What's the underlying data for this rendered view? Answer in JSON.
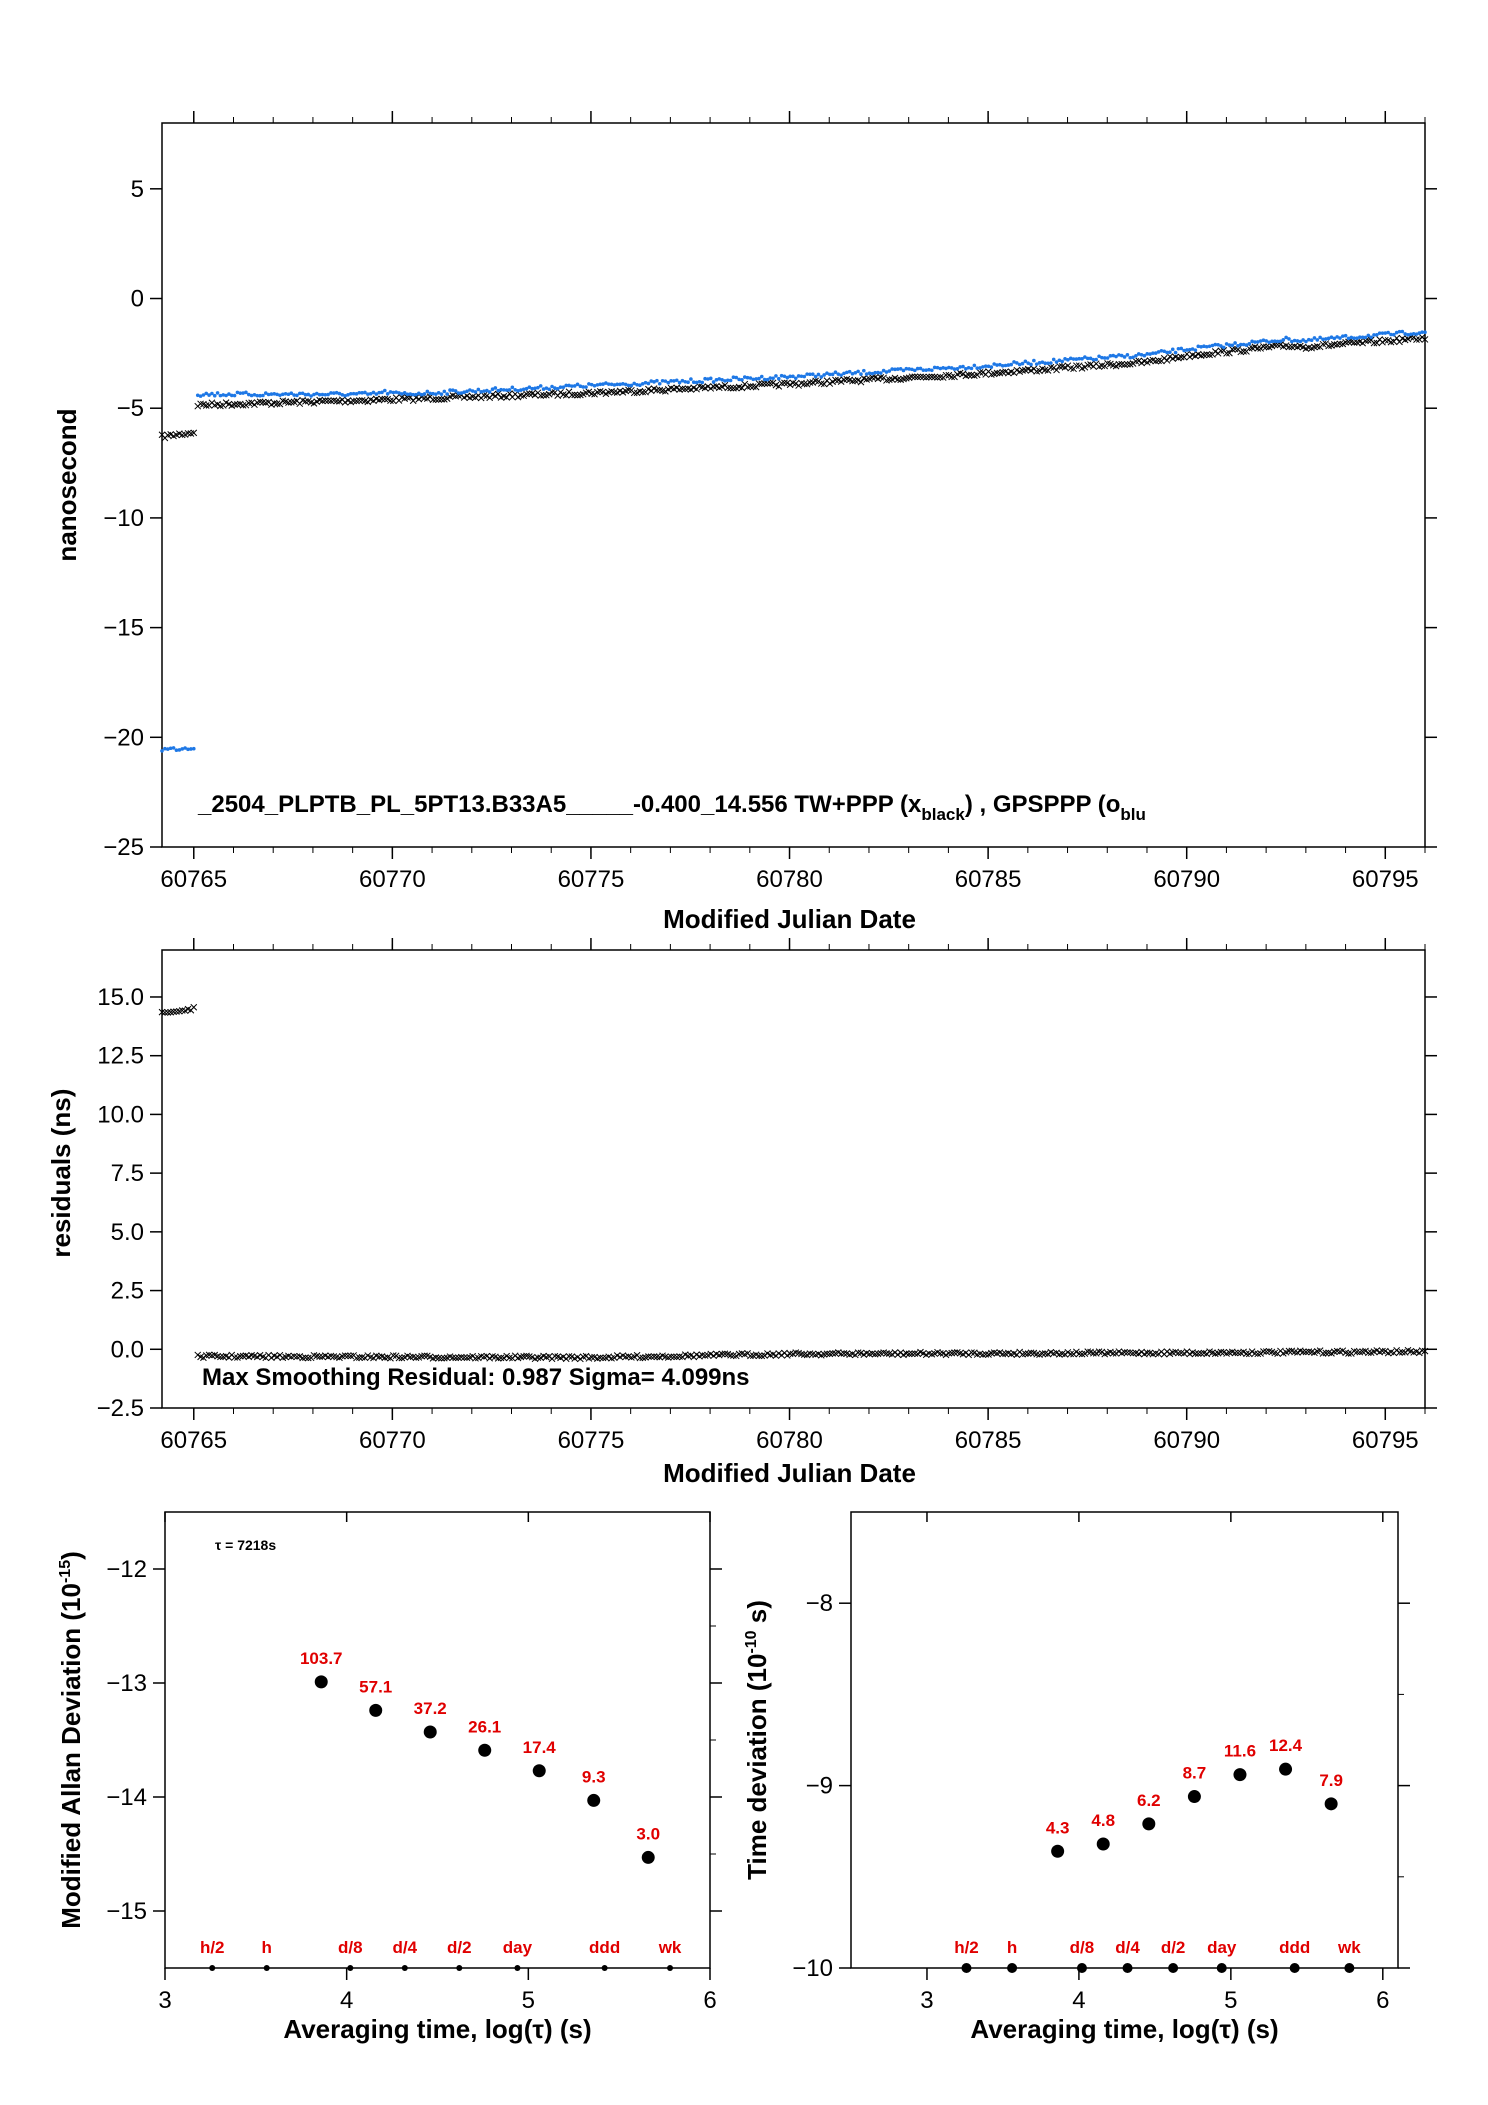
{
  "colors": {
    "black_series": "#000000",
    "blue_series": "#1e78e6",
    "label_red": "#e00000"
  },
  "chart_data": [
    {
      "id": "time_offset",
      "type": "scatter",
      "xlabel": "Modified Julian Date",
      "ylabel": "nanosecond",
      "xlim": [
        60764.2,
        60796
      ],
      "ylim": [
        -25,
        8
      ],
      "xticks": [
        60765,
        60770,
        60775,
        60780,
        60785,
        60790,
        60795
      ],
      "yticks": [
        5,
        0,
        -5,
        -10,
        -15,
        -20,
        -25
      ],
      "annotation": "_2504_PLPTB_PL_5PT13.B33A5_____-0.400_14.556     TW+PPP (x",
      "annotation_sub1": "black",
      "annotation_mid": ") ,  GPSPPP (o",
      "annotation_sub2": "blu",
      "series": [
        {
          "marker": "x",
          "color": "#000000",
          "segments": [
            {
              "x": [
                60764.2,
                60765.0
              ],
              "y": [
                -6.3,
                -6.1
              ]
            },
            {
              "x": [
                60765.1,
                60770,
                60775,
                60780,
                60785,
                60789,
                60790,
                60792.5,
                60793,
                60796
              ],
              "y": [
                -4.85,
                -4.6,
                -4.3,
                -3.9,
                -3.4,
                -2.9,
                -2.6,
                -2.15,
                -2.2,
                -1.8
              ]
            }
          ]
        },
        {
          "marker": "o",
          "color": "#1e78e6",
          "segments": [
            {
              "x": [
                60764.2,
                60765.0
              ],
              "y": [
                -20.7,
                -20.6
              ]
            },
            {
              "x": [
                60765.1,
                60769.5,
                60769.8,
                60770.2,
                60775,
                60780,
                60785,
                60789,
                60790,
                60792.5,
                60793,
                60796
              ],
              "y": [
                -4.5,
                -4.5,
                -4.4,
                -4.5,
                -4.1,
                -3.7,
                -3.2,
                -2.7,
                -2.45,
                -2.0,
                -2.05,
                -1.65
              ]
            }
          ]
        }
      ]
    },
    {
      "id": "residuals",
      "type": "scatter",
      "xlabel": "Modified Julian Date",
      "ylabel": "residuals (ns)",
      "xlim": [
        60764.2,
        60796
      ],
      "ylim": [
        -2.5,
        17
      ],
      "xticks": [
        60765,
        60770,
        60775,
        60780,
        60785,
        60790,
        60795
      ],
      "yticks": [
        15.0,
        12.5,
        10.0,
        7.5,
        5.0,
        2.5,
        0.0,
        -2.5
      ],
      "ytick_labels": [
        "15.0",
        "12.5",
        "10.0",
        "7.5",
        "5.0",
        "2.5",
        "0.0",
        "−2.5"
      ],
      "annotation": "Max Smoothing Residual: 0.987  Sigma= 4.099ns",
      "series": [
        {
          "marker": "x",
          "color": "#000000",
          "segments": [
            {
              "x": [
                60764.2,
                60765.0
              ],
              "y": [
                14.3,
                14.5
              ]
            },
            {
              "x": [
                60765.1,
                60775,
                60780,
                60790,
                60796
              ],
              "y": [
                -0.3,
                -0.35,
                -0.2,
                -0.15,
                -0.1
              ]
            }
          ]
        }
      ]
    },
    {
      "id": "mdev",
      "type": "scatter",
      "xlabel": "Averaging time, log(τ) (s)",
      "ylabel": "Modified Allan Deviation (10",
      "ylabel_sup": "-15",
      "ylabel_end": ")",
      "xlim": [
        3,
        6
      ],
      "ylim": [
        -15.5,
        -11.5
      ],
      "xticks": [
        3,
        4,
        5,
        6
      ],
      "yticks": [
        -12,
        -13,
        -14,
        -15
      ],
      "annotation": "τ = 7218s",
      "x": [
        3.86,
        4.16,
        4.46,
        4.76,
        5.06,
        5.36,
        5.66
      ],
      "y": [
        -12.99,
        -13.24,
        -13.43,
        -13.59,
        -13.77,
        -14.03,
        -14.53
      ],
      "point_labels": [
        "103.7",
        "57.1",
        "37.2",
        "26.1",
        "17.4",
        "9.3",
        "3.0"
      ],
      "ref_marks": {
        "x": [
          3.26,
          3.56,
          4.02,
          4.32,
          4.62,
          4.94,
          5.42,
          5.78
        ],
        "labels": [
          "h/2",
          "h",
          "d/8",
          "d/4",
          "d/2",
          "day",
          "ddd",
          "wk"
        ]
      }
    },
    {
      "id": "tdev",
      "type": "scatter",
      "xlabel": "Averaging time, log(τ) (s)",
      "ylabel": "Time deviation (10",
      "ylabel_sup": "-10",
      "ylabel_end": " s)",
      "xlim": [
        2.5,
        6.1
      ],
      "ylim": [
        -10,
        -7.5
      ],
      "xticks": [
        3,
        4,
        5,
        6
      ],
      "yticks": [
        -8,
        -9,
        -10
      ],
      "x": [
        3.86,
        4.16,
        4.46,
        4.76,
        5.06,
        5.36,
        5.66
      ],
      "y": [
        -9.36,
        -9.32,
        -9.21,
        -9.06,
        -8.94,
        -8.91,
        -9.1
      ],
      "point_labels": [
        "4.3",
        "4.8",
        "6.2",
        "8.7",
        "11.6",
        "12.4",
        "7.9"
      ],
      "ref_marks": {
        "x": [
          3.26,
          3.56,
          4.02,
          4.32,
          4.62,
          4.94,
          5.42,
          5.78
        ],
        "labels": [
          "h/2",
          "h",
          "d/8",
          "d/4",
          "d/2",
          "day",
          "ddd",
          "wk"
        ]
      }
    }
  ]
}
